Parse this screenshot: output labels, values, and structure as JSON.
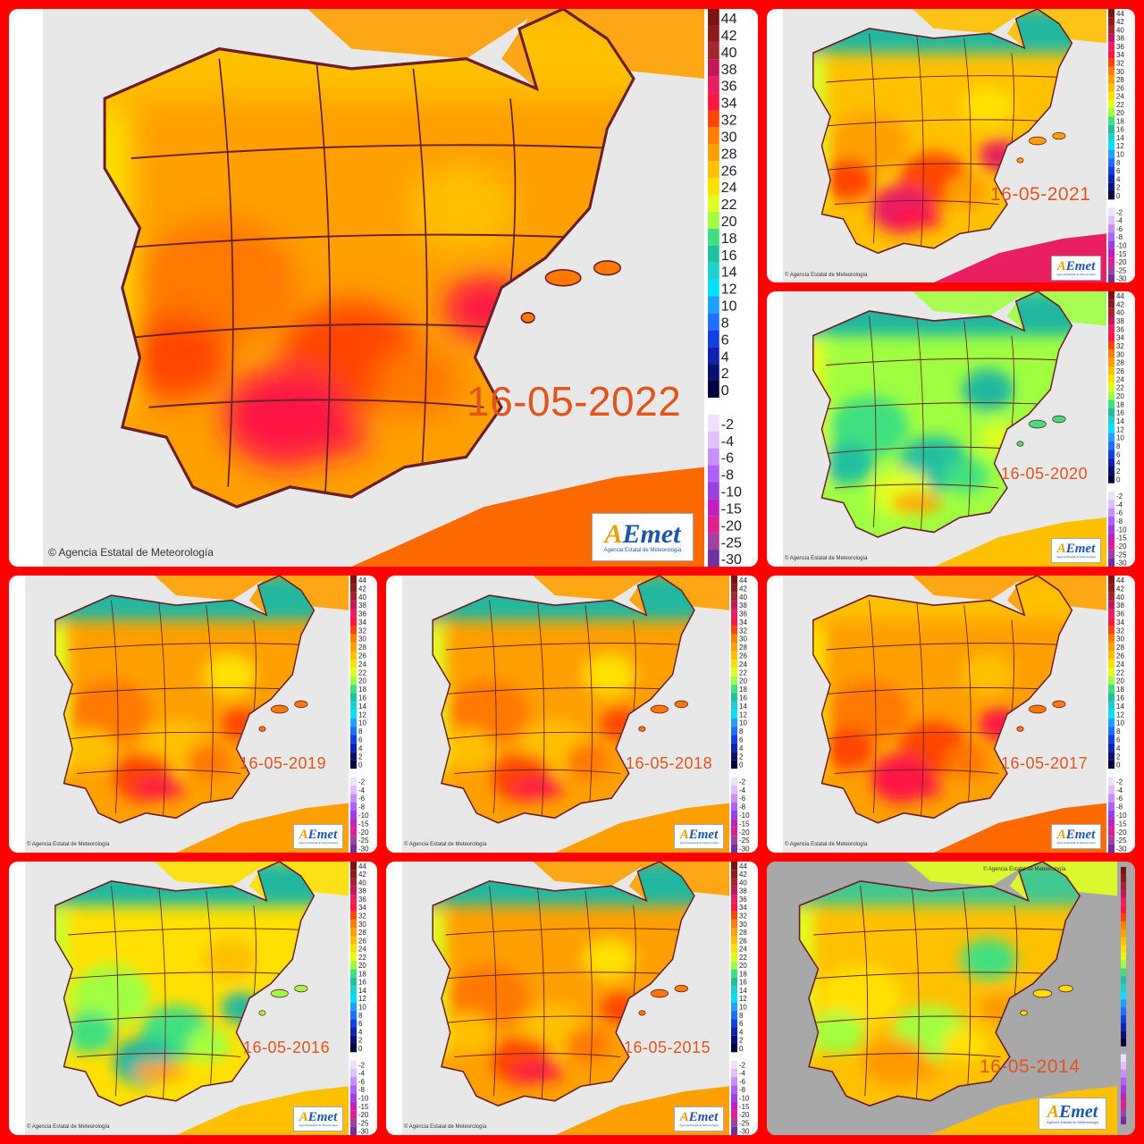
{
  "organization": "Agencia Estatal de Meteorología",
  "credit_text": "© Agencia Estatal de Meteorología",
  "logo": {
    "brand_accent": "A",
    "brand_rest": "Emet",
    "subtitle": "Agencia Estatal de Meteorología"
  },
  "legend_positive": [
    "44",
    "42",
    "40",
    "38",
    "36",
    "34",
    "32",
    "30",
    "28",
    "26",
    "24",
    "22",
    "20",
    "18",
    "16",
    "14",
    "12",
    "10",
    "8",
    "6",
    "4",
    "2",
    "0"
  ],
  "legend_negative": [
    "-2",
    "-4",
    "-6",
    "-8",
    "-10",
    "-15",
    "-20",
    "-25",
    "-30"
  ],
  "legend_colors_positive": [
    "#7a1414",
    "#8c1c1c",
    "#a3252f",
    "#c2185b",
    "#e91e63",
    "#ff1744",
    "#ff4500",
    "#ff8000",
    "#ffa000",
    "#ffc000",
    "#ffe000",
    "#e0ff20",
    "#a0ff40",
    "#40e080",
    "#20c0a0",
    "#20d0d0",
    "#00e0ff",
    "#20a0ff",
    "#2070ff",
    "#1040e0",
    "#1020b0",
    "#0a1070",
    "#000040"
  ],
  "legend_colors_negative": [
    "#f0e0ff",
    "#e0c0ff",
    "#c890ff",
    "#b060ff",
    "#9a40e0",
    "#c020c0",
    "#e02090",
    "#a040a0",
    "#7030a0"
  ],
  "panels": [
    {
      "date": "16-05-2022",
      "theme": "hot"
    },
    {
      "date": "16-05-2021",
      "theme": "mixed-hot"
    },
    {
      "date": "16-05-2020",
      "theme": "cool"
    },
    {
      "date": "16-05-2019",
      "theme": "warm"
    },
    {
      "date": "16-05-2018",
      "theme": "warm"
    },
    {
      "date": "16-05-2017",
      "theme": "hot"
    },
    {
      "date": "16-05-2016",
      "theme": "cool-mid"
    },
    {
      "date": "16-05-2015",
      "theme": "warm"
    },
    {
      "date": "16-05-2014",
      "theme": "mild"
    }
  ]
}
